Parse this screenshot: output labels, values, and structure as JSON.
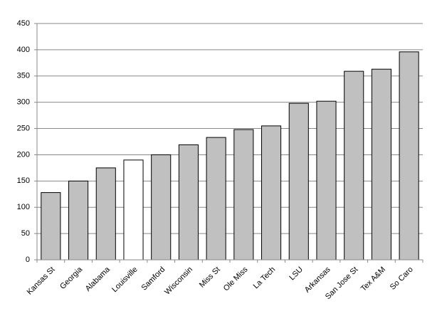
{
  "chart_data": {
    "type": "bar",
    "categories": [
      "Kansas St",
      "Georgia",
      "Alabama",
      "Louisville",
      "Samford",
      "Wisconsin",
      "Miss St",
      "Ole Miss",
      "La Tech",
      "LSU",
      "Arkansas",
      "San Jose St",
      "Tex A&M",
      "So Caro"
    ],
    "values": [
      128,
      150,
      175,
      190,
      200,
      219,
      233,
      248,
      255,
      298,
      302,
      359,
      363,
      396
    ],
    "colors": [
      "#c0c0c0",
      "#c0c0c0",
      "#c0c0c0",
      "#ffffff",
      "#c0c0c0",
      "#c0c0c0",
      "#c0c0c0",
      "#c0c0c0",
      "#c0c0c0",
      "#c0c0c0",
      "#c0c0c0",
      "#c0c0c0",
      "#c0c0c0",
      "#c0c0c0"
    ],
    "ylim": [
      0,
      450
    ],
    "yticks": [
      0,
      50,
      100,
      150,
      200,
      250,
      300,
      350,
      400,
      450
    ],
    "grid": true
  }
}
